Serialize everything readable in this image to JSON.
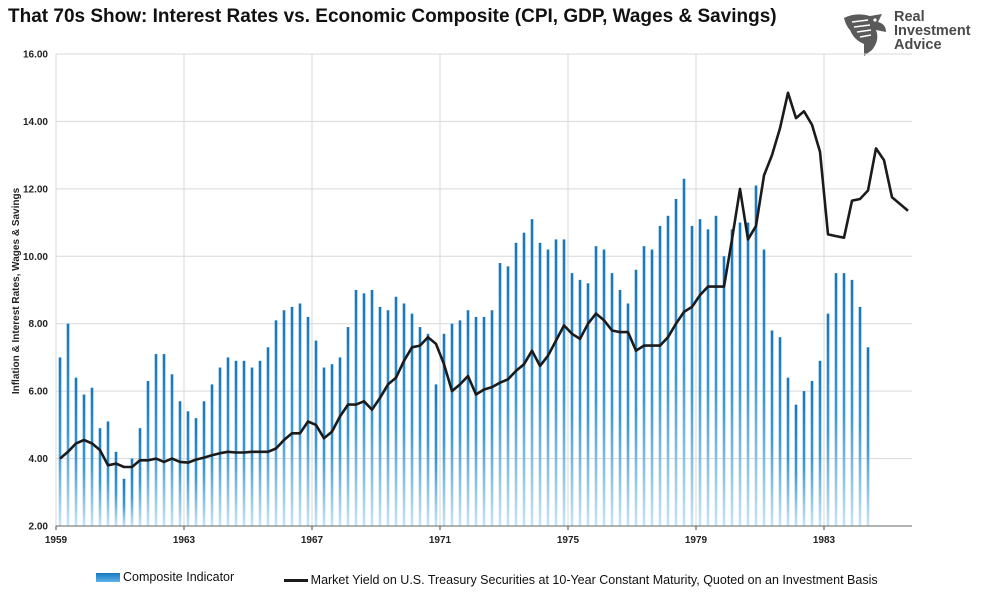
{
  "title": "That 70s Show: Interest Rates vs. Economic Composite (CPI, GDP, Wages & Savings)",
  "logo": {
    "line1": "Real",
    "line2": "Investment",
    "line3": "Advice"
  },
  "chart_data": {
    "type": "bar+line",
    "ylabel": "Inflation & Interest Rates, Wages & Savings",
    "ylim": [
      2,
      16
    ],
    "yticks": [
      "2.00",
      "4.00",
      "6.00",
      "8.00",
      "10.00",
      "12.00",
      "14.00",
      "16.00"
    ],
    "xticks": [
      "1959",
      "1963",
      "1967",
      "1971",
      "1975",
      "1979",
      "1983"
    ],
    "xlim_years": [
      1959,
      1985.75
    ],
    "grid": true,
    "legend_position": "bottom",
    "colors": {
      "bar_top": "#1677c0",
      "bar_bottom": "#c8e4f6",
      "line": "#1b1b1b",
      "grid": "#d9d9d9"
    },
    "series": [
      {
        "name": "Composite Indicator",
        "kind": "bar",
        "frequency": "quarterly",
        "start": 1959.0,
        "values": [
          7.0,
          8.0,
          6.4,
          5.9,
          6.1,
          4.9,
          5.1,
          4.2,
          3.4,
          4.0,
          4.9,
          6.3,
          7.1,
          7.1,
          6.5,
          5.7,
          5.4,
          5.2,
          5.7,
          6.2,
          6.7,
          7.0,
          6.9,
          6.9,
          6.7,
          6.9,
          7.3,
          8.1,
          8.4,
          8.5,
          8.6,
          8.2,
          7.5,
          6.7,
          6.8,
          7.0,
          7.9,
          9.0,
          8.9,
          9.0,
          8.5,
          8.4,
          8.8,
          8.6,
          8.3,
          7.9,
          7.7,
          6.2,
          7.7,
          8.0,
          8.1,
          8.4,
          8.2,
          8.2,
          8.4,
          9.8,
          9.7,
          10.4,
          10.7,
          11.1,
          10.4,
          10.2,
          10.5,
          10.5,
          9.5,
          9.3,
          9.2,
          10.3,
          10.2,
          9.5,
          9.0,
          8.6,
          9.6,
          10.3,
          10.2,
          10.9,
          11.2,
          11.7,
          12.3,
          10.9,
          11.1,
          10.8,
          11.2,
          10.0,
          10.8,
          11.0,
          11.0,
          12.1,
          10.2,
          7.8,
          7.6,
          6.4,
          5.6,
          6.0,
          6.3,
          6.9,
          8.3,
          9.5,
          9.5,
          9.3,
          8.5,
          7.3
        ]
      },
      {
        "name": "Market Yield on U.S. Treasury Securities at 10-Year Constant Maturity, Quoted on an Investment Basis",
        "kind": "line",
        "frequency": "quarterly",
        "start": 1959.0,
        "values": [
          4.0,
          4.2,
          4.45,
          4.55,
          4.45,
          4.25,
          3.8,
          3.85,
          3.75,
          3.75,
          3.95,
          3.95,
          4.0,
          3.9,
          4.0,
          3.9,
          3.88,
          3.97,
          4.03,
          4.1,
          4.16,
          4.2,
          4.18,
          4.18,
          4.2,
          4.2,
          4.2,
          4.3,
          4.55,
          4.75,
          4.75,
          5.1,
          5.0,
          4.6,
          4.8,
          5.25,
          5.6,
          5.6,
          5.7,
          5.45,
          5.8,
          6.2,
          6.4,
          6.9,
          7.3,
          7.35,
          7.6,
          7.4,
          6.8,
          6.0,
          6.2,
          6.45,
          5.9,
          6.05,
          6.12,
          6.25,
          6.35,
          6.6,
          6.8,
          7.2,
          6.75,
          7.05,
          7.5,
          7.95,
          7.7,
          7.55,
          8.0,
          8.3,
          8.1,
          7.8,
          7.75,
          7.75,
          7.2,
          7.35,
          7.35,
          7.35,
          7.6,
          8.0,
          8.35,
          8.5,
          8.85,
          9.1,
          9.1,
          9.1,
          10.5,
          12.0,
          10.5,
          10.9,
          12.4,
          13.0,
          13.8,
          14.85,
          14.1,
          14.3,
          13.9,
          13.1,
          10.65,
          10.6,
          10.55,
          11.65,
          11.7,
          11.95,
          13.2,
          12.85,
          11.75,
          11.55,
          11.35
        ]
      }
    ]
  }
}
